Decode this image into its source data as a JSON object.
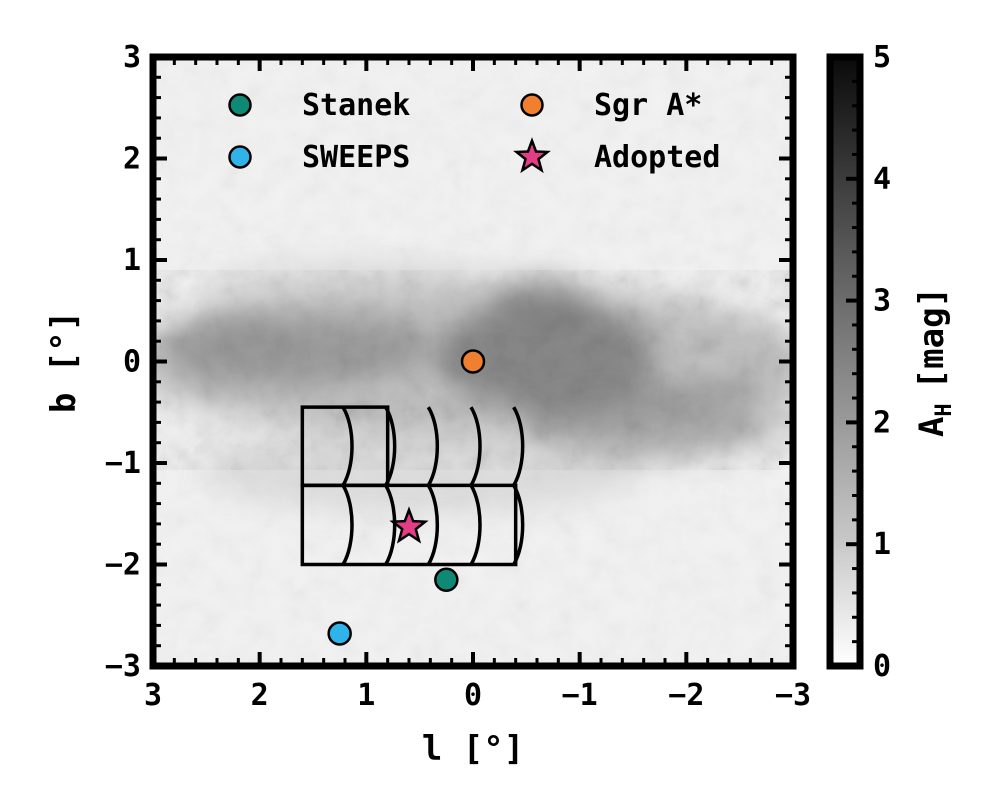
{
  "chart_data": {
    "type": "scatter",
    "xlabel": "l [°]",
    "ylabel": "b [°]",
    "xlim": [
      3,
      -3
    ],
    "ylim": [
      -3,
      3
    ],
    "x_ticks": [
      "3",
      "2",
      "1",
      "0",
      "−1",
      "−2",
      "−3"
    ],
    "y_ticks": [
      "−3",
      "−2",
      "−1",
      "0",
      "1",
      "2",
      "3"
    ],
    "background": "grayscale extinction map (A_H), dark band along b ≈ 0",
    "colorbar": {
      "label_main": "A",
      "label_sub": "H",
      "label_unit": "[mag]",
      "range": [
        0,
        5
      ],
      "ticks": [
        "0",
        "1",
        "2",
        "3",
        "4",
        "5"
      ],
      "colormap": "gray_r"
    },
    "series": [
      {
        "name": "Stanek",
        "marker": "circle",
        "color": "#0e8a74",
        "points": [
          [
            0.25,
            -2.15
          ]
        ]
      },
      {
        "name": "Sgr A*",
        "marker": "circle",
        "color": "#f07f2f",
        "points": [
          [
            0.0,
            0.0
          ]
        ]
      },
      {
        "name": "SWEEPS",
        "marker": "circle",
        "color": "#2fb3e8",
        "points": [
          [
            1.25,
            -2.68
          ]
        ]
      },
      {
        "name": "Adopted",
        "marker": "star",
        "color": "#e33d86",
        "points": [
          [
            0.6,
            -1.63
          ]
        ]
      }
    ],
    "legend": {
      "position": "top",
      "columns": 2
    },
    "field_outline": {
      "color": "#000000",
      "top_block_lon": [
        1.6,
        0.8
      ],
      "top_block_lat": [
        -1.22,
        -0.45
      ],
      "bottom_block_lon": [
        1.6,
        -0.4
      ],
      "bottom_block_lat": [
        -2.0,
        -1.22
      ],
      "curved_dividers_lon": [
        1.2,
        0.8,
        0.4,
        0.0,
        -0.4
      ]
    }
  }
}
